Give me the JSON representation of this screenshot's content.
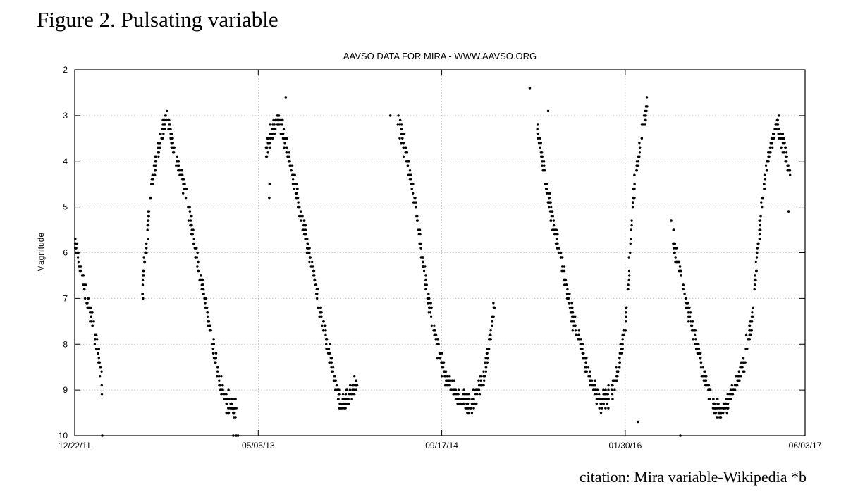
{
  "figure": {
    "title": "Figure 2. Pulsating variable",
    "citation": "citation: Mira variable-Wikipedia *b"
  },
  "chart_data": {
    "type": "scatter",
    "title": "AAVSO DATA FOR MIRA - WWW.AAVSO.ORG",
    "xlabel": "",
    "ylabel": "Magnitude",
    "y_inverted": true,
    "ylim": [
      2,
      10
    ],
    "xlim": [
      0,
      1990
    ],
    "x_units": "days since 12/22/11",
    "y_ticks": [
      "2",
      "3",
      "4",
      "5",
      "6",
      "7",
      "8",
      "9",
      "10"
    ],
    "x_ticks": [
      {
        "day": 0,
        "label": "12/22/11"
      },
      {
        "day": 500,
        "label": "05/05/13"
      },
      {
        "day": 1000,
        "label": "09/17/14"
      },
      {
        "day": 1500,
        "label": "01/30/16"
      },
      {
        "day": 1990,
        "label": "06/03/17"
      }
    ],
    "grid": true,
    "point_color": "#000000",
    "light_curve": [
      [
        0,
        5.8
      ],
      [
        30,
        6.9
      ],
      [
        60,
        8.0
      ],
      [
        75,
        8.9
      ],
      [
        180,
        7.2
      ],
      [
        200,
        5.3
      ],
      [
        210,
        4.5
      ],
      [
        225,
        3.8
      ],
      [
        240,
        3.3
      ],
      [
        252,
        3.0
      ],
      [
        262,
        3.4
      ],
      [
        275,
        3.9
      ],
      [
        290,
        4.3
      ],
      [
        310,
        5.0
      ],
      [
        330,
        6.0
      ],
      [
        355,
        7.0
      ],
      [
        375,
        8.0
      ],
      [
        395,
        8.8
      ],
      [
        415,
        9.3
      ],
      [
        440,
        9.4
      ],
      [
        520,
        3.8
      ],
      [
        540,
        3.3
      ],
      [
        555,
        3.1
      ],
      [
        575,
        3.6
      ],
      [
        595,
        4.4
      ],
      [
        620,
        5.3
      ],
      [
        650,
        6.4
      ],
      [
        675,
        7.5
      ],
      [
        700,
        8.5
      ],
      [
        725,
        9.3
      ],
      [
        750,
        9.1
      ],
      [
        770,
        8.8
      ],
      [
        880,
        3.1
      ],
      [
        905,
        3.9
      ],
      [
        930,
        5.0
      ],
      [
        950,
        6.3
      ],
      [
        970,
        7.3
      ],
      [
        990,
        8.1
      ],
      [
        1010,
        8.7
      ],
      [
        1040,
        9.1
      ],
      [
        1065,
        9.3
      ],
      [
        1090,
        9.2
      ],
      [
        1110,
        8.8
      ],
      [
        1130,
        8.0
      ],
      [
        1145,
        7.0
      ],
      [
        1260,
        3.3
      ],
      [
        1280,
        4.3
      ],
      [
        1300,
        5.2
      ],
      [
        1325,
        6.1
      ],
      [
        1345,
        7.0
      ],
      [
        1370,
        7.8
      ],
      [
        1390,
        8.3
      ],
      [
        1410,
        8.9
      ],
      [
        1435,
        9.3
      ],
      [
        1460,
        9.1
      ],
      [
        1480,
        8.6
      ],
      [
        1500,
        7.6
      ],
      [
        1510,
        6.5
      ],
      [
        1520,
        5.0
      ],
      [
        1530,
        4.2
      ],
      [
        1545,
        3.4
      ],
      [
        1560,
        2.8
      ],
      [
        1630,
        5.7
      ],
      [
        1660,
        6.8
      ],
      [
        1685,
        7.7
      ],
      [
        1710,
        8.5
      ],
      [
        1735,
        9.2
      ],
      [
        1760,
        9.5
      ],
      [
        1785,
        9.2
      ],
      [
        1815,
        8.6
      ],
      [
        1845,
        7.5
      ],
      [
        1860,
        6.0
      ],
      [
        1875,
        4.7
      ],
      [
        1895,
        3.7
      ],
      [
        1915,
        3.2
      ],
      [
        1930,
        3.6
      ],
      [
        1950,
        4.3
      ]
    ],
    "outliers": [
      [
        75,
        10.0
      ],
      [
        185,
        6.9
      ],
      [
        186,
        7.0
      ],
      [
        200,
        5.7
      ],
      [
        432,
        10.0
      ],
      [
        440,
        10.0
      ],
      [
        445,
        10.0
      ],
      [
        530,
        4.8
      ],
      [
        531,
        4.5
      ],
      [
        575,
        2.6
      ],
      [
        860,
        3.0
      ],
      [
        890,
        3.3
      ],
      [
        1240,
        2.4
      ],
      [
        1290,
        2.9
      ],
      [
        1535,
        9.7
      ],
      [
        1625,
        5.3
      ],
      [
        1632,
        5.5
      ],
      [
        1945,
        5.1
      ],
      [
        1650,
        10.0
      ]
    ]
  }
}
